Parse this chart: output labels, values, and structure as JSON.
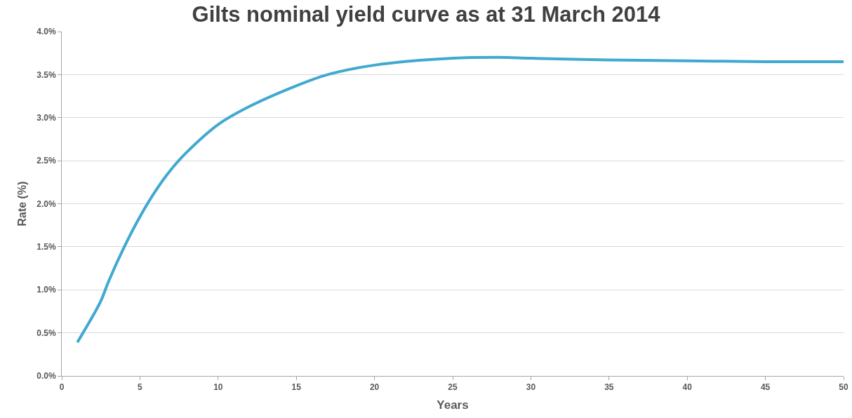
{
  "chart_data": {
    "type": "line",
    "title": "Gilts nominal yield curve as at 31 March 2014",
    "xlabel": "Years",
    "ylabel": "Rate (%)",
    "x": [
      1,
      2,
      2.5,
      3,
      4,
      5,
      6,
      7,
      8,
      10,
      12,
      15,
      17,
      20,
      25,
      28,
      30,
      35,
      40,
      45,
      50
    ],
    "series": [
      {
        "color": "#41a9cf",
        "values": [
          0.39,
          0.7,
          0.87,
          1.1,
          1.5,
          1.85,
          2.15,
          2.4,
          2.6,
          2.92,
          3.13,
          3.37,
          3.5,
          3.61,
          3.69,
          3.7,
          3.69,
          3.67,
          3.66,
          3.65,
          3.65
        ]
      }
    ],
    "xlim": [
      0,
      50
    ],
    "xticks": [
      0,
      5,
      10,
      15,
      20,
      25,
      30,
      35,
      40,
      45,
      50
    ],
    "ylim": [
      0,
      4
    ],
    "yticks": [
      {
        "value": 0,
        "label": "0.0%"
      },
      {
        "value": 0.5,
        "label": "0.5%"
      },
      {
        "value": 1,
        "label": "1.0%"
      },
      {
        "value": 1.5,
        "label": "1.5%"
      },
      {
        "value": 2,
        "label": "2.0%"
      },
      {
        "value": 2.5,
        "label": "2.5%"
      },
      {
        "value": 3,
        "label": "3.0%"
      },
      {
        "value": 3.5,
        "label": "3.5%"
      },
      {
        "value": 4,
        "label": "4.0%"
      }
    ],
    "grid": "y",
    "marker": "none",
    "line_style": "solid"
  }
}
